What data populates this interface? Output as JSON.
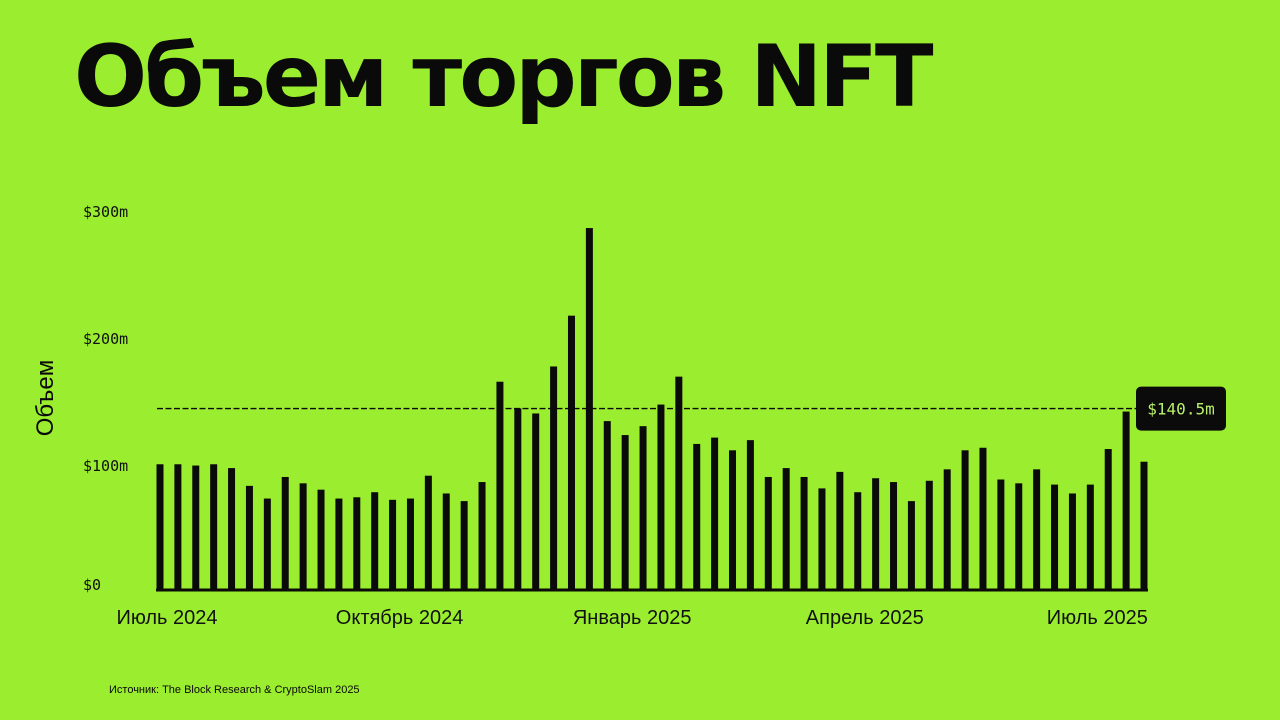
{
  "page": {
    "title": "Объем торгов NFT",
    "source": "Источник: The Block Research & CryptoSlam 2025",
    "background": "#9bed2f",
    "ink": "#0a0a0a"
  },
  "chart_data": {
    "type": "bar",
    "title": "Объем торгов NFT",
    "xlabel": "",
    "ylabel": "Объем",
    "ylim": [
      0,
      300
    ],
    "yticks": [
      {
        "value": 0,
        "label": "$0"
      },
      {
        "value": 100,
        "label": "$100m"
      },
      {
        "value": 200,
        "label": "$200m"
      },
      {
        "value": 300,
        "label": "$300m"
      }
    ],
    "xticks": [
      {
        "index": 0,
        "label": "Июль 2024"
      },
      {
        "index": 13,
        "label": "Октябрь 2024"
      },
      {
        "index": 26,
        "label": "Январь 2025"
      },
      {
        "index": 39,
        "label": "Апрель 2025"
      },
      {
        "index": 52,
        "label": "Июль 2025"
      }
    ],
    "values": [
      99,
      99,
      98,
      99,
      96,
      82,
      72,
      89,
      84,
      79,
      72,
      73,
      77,
      71,
      72,
      90,
      76,
      70,
      85,
      164,
      143,
      139,
      176,
      216,
      285,
      133,
      122,
      129,
      146,
      168,
      115,
      120,
      110,
      118,
      89,
      96,
      89,
      80,
      93,
      77,
      88,
      85,
      70,
      86,
      95,
      110,
      112,
      87,
      84,
      95,
      83,
      76,
      83,
      111,
      140.5,
      101
    ],
    "reference_line": {
      "value": 140.5,
      "label": "$140.5m",
      "style": "dashed"
    },
    "grid": false,
    "legend": "none"
  }
}
